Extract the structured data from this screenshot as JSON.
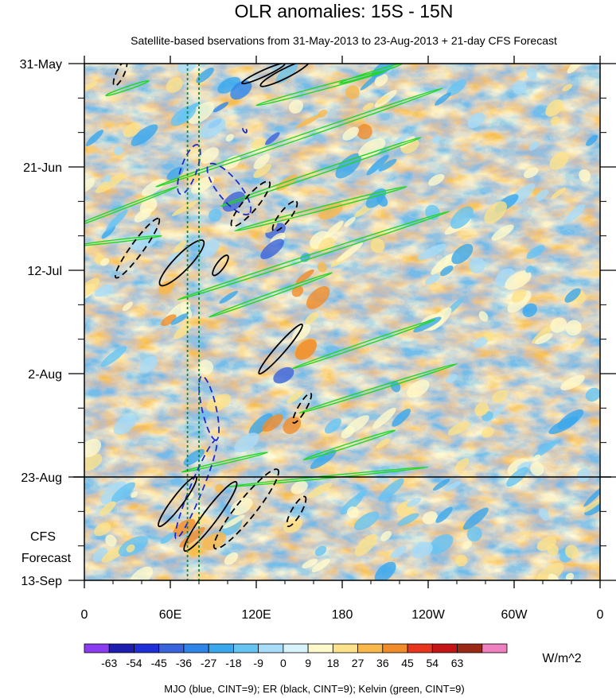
{
  "chart_data": {
    "type": "heatmap",
    "title": "OLR anomalies: 15S - 15N",
    "subtitle": "Satellite-based bservations from 31-May-2013 to 23-Aug-2013 + 21-day CFS Forecast",
    "x_ticks": [
      "0",
      "60E",
      "120E",
      "180",
      "120W",
      "60W",
      "0"
    ],
    "x_tick_values": [
      0,
      60,
      120,
      180,
      240,
      300,
      360
    ],
    "xlim": [
      0,
      360
    ],
    "y_ticks": [
      "31-May",
      "21-Jun",
      "12-Jul",
      "2-Aug",
      "23-Aug",
      "13-Sep"
    ],
    "y_tick_days": [
      0,
      21,
      42,
      63,
      84,
      105
    ],
    "ylim_days": [
      0,
      105
    ],
    "forecast_start_day": 84,
    "forecast_label": [
      "CFS",
      "Forecast"
    ],
    "colorbar": {
      "units": "W/m^2",
      "levels": [
        -63,
        -54,
        -45,
        -36,
        -27,
        -18,
        -9,
        0,
        9,
        18,
        27,
        36,
        45,
        54,
        63
      ],
      "labels": [
        "-63",
        "-54",
        "-45",
        "-36",
        "-27",
        "-18",
        "-9",
        "0",
        "9",
        "18",
        "27",
        "36",
        "45",
        "54",
        "63"
      ],
      "colors": [
        "#8a3cf0",
        "#1d1db0",
        "#1f2fd8",
        "#3a64dc",
        "#2f86e8",
        "#3aa8ec",
        "#66c4f2",
        "#a8dcf8",
        "#d9f3fb",
        "#fffacc",
        "#fce28a",
        "#f9b84a",
        "#f08c2a",
        "#e8351e",
        "#c41616",
        "#9a2a16",
        "#ee80c0"
      ]
    },
    "reference_lines_lon": [
      72,
      80
    ],
    "legend_note": "MJO (blue, CINT=9); ER (black, CINT=9); Kelvin (green, CINT=9)",
    "contours": {
      "mjo_blue": [
        {
          "lon": 73,
          "day": 21.5,
          "dlon": -6,
          "dday": 5,
          "w": 5
        },
        {
          "lon": 101,
          "day": 25.5,
          "dlon": 14,
          "dday": 5,
          "w": 7
        },
        {
          "lon": 87,
          "day": 70,
          "dlon": 5,
          "dday": 6.5,
          "w": 4.5
        },
        {
          "lon": 78,
          "day": 86.5,
          "dlon": -14,
          "dday": 10,
          "w": 4
        },
        {
          "lon": 112,
          "day": 13.5,
          "dlon": 1,
          "dday": 0.5,
          "w": 1
        }
      ],
      "er_black": [
        {
          "lon": 25,
          "day": 2,
          "dlon": 4,
          "dday": -2.5,
          "w": 2.5
        },
        {
          "lon": 125,
          "day": 2,
          "dlon": 15,
          "dday": -2,
          "w": 2
        },
        {
          "lon": 140,
          "day": 2,
          "dlon": 17,
          "dday": -2.5,
          "w": 3
        },
        {
          "lon": 37,
          "day": 37.5,
          "dlon": 15,
          "dday": -6,
          "w": 4
        },
        {
          "lon": 68,
          "day": 40.5,
          "dlon": 15,
          "dday": -4.5,
          "w": 5
        },
        {
          "lon": 95,
          "day": 41,
          "dlon": 5,
          "dday": -2,
          "w": 2.5
        },
        {
          "lon": 116,
          "day": 28.5,
          "dlon": 13,
          "dday": -4.5,
          "w": 4.5
        },
        {
          "lon": 140,
          "day": 31,
          "dlon": 8,
          "dday": -3,
          "w": 3.5
        },
        {
          "lon": 137,
          "day": 58,
          "dlon": 15,
          "dday": -5,
          "w": 3
        },
        {
          "lon": 152,
          "day": 70,
          "dlon": 6,
          "dday": -3,
          "w": 2.5
        },
        {
          "lon": 65,
          "day": 89,
          "dlon": 13,
          "dday": -5,
          "w": 3.5
        },
        {
          "lon": 88,
          "day": 92,
          "dlon": 18,
          "dday": -7,
          "w": 4.5
        },
        {
          "lon": 113,
          "day": 90.5,
          "dlon": 22,
          "dday": -8,
          "w": 6
        },
        {
          "lon": 148,
          "day": 91,
          "dlon": 6,
          "dday": -3,
          "w": 3
        }
      ],
      "kelvin_green": [
        {
          "lon": 30,
          "day": 5,
          "dlon": 15,
          "dday": -1.5,
          "w": 1
        },
        {
          "lon": 200,
          "day": 2,
          "dlon": 22,
          "dday": -2,
          "w": 1
        },
        {
          "lon": 165,
          "day": 5,
          "dlon": 45,
          "dday": -3.5,
          "w": 1.2
        },
        {
          "lon": 150,
          "day": 15,
          "dlon": 100,
          "dday": -10,
          "w": 1.2
        },
        {
          "lon": 165,
          "day": 22,
          "dlon": 70,
          "dday": -7,
          "w": 1.2
        },
        {
          "lon": 165,
          "day": 29.5,
          "dlon": 60,
          "dday": -4.5,
          "w": 1.2
        },
        {
          "lon": 25,
          "day": 29.5,
          "dlon": 40,
          "dday": -4.5,
          "w": 0.8
        },
        {
          "lon": 160,
          "day": 39,
          "dlon": 95,
          "dday": -9,
          "w": 1.2
        },
        {
          "lon": 24,
          "day": 36,
          "dlon": 30,
          "dday": -1,
          "w": 0.8
        },
        {
          "lon": 130,
          "day": 47,
          "dlon": 43,
          "dday": -4.5,
          "w": 1
        },
        {
          "lon": 195,
          "day": 57,
          "dlon": 50,
          "dday": -5,
          "w": 1
        },
        {
          "lon": 205,
          "day": 66,
          "dlon": 55,
          "dday": -5,
          "w": 1
        },
        {
          "lon": 185,
          "day": 77.5,
          "dlon": 32,
          "dday": -3,
          "w": 1
        },
        {
          "lon": 98,
          "day": 81,
          "dlon": 30,
          "dday": -2,
          "w": 0.8
        },
        {
          "lon": 170,
          "day": 84,
          "dlon": 70,
          "dday": -2,
          "w": 0.6
        }
      ]
    }
  }
}
